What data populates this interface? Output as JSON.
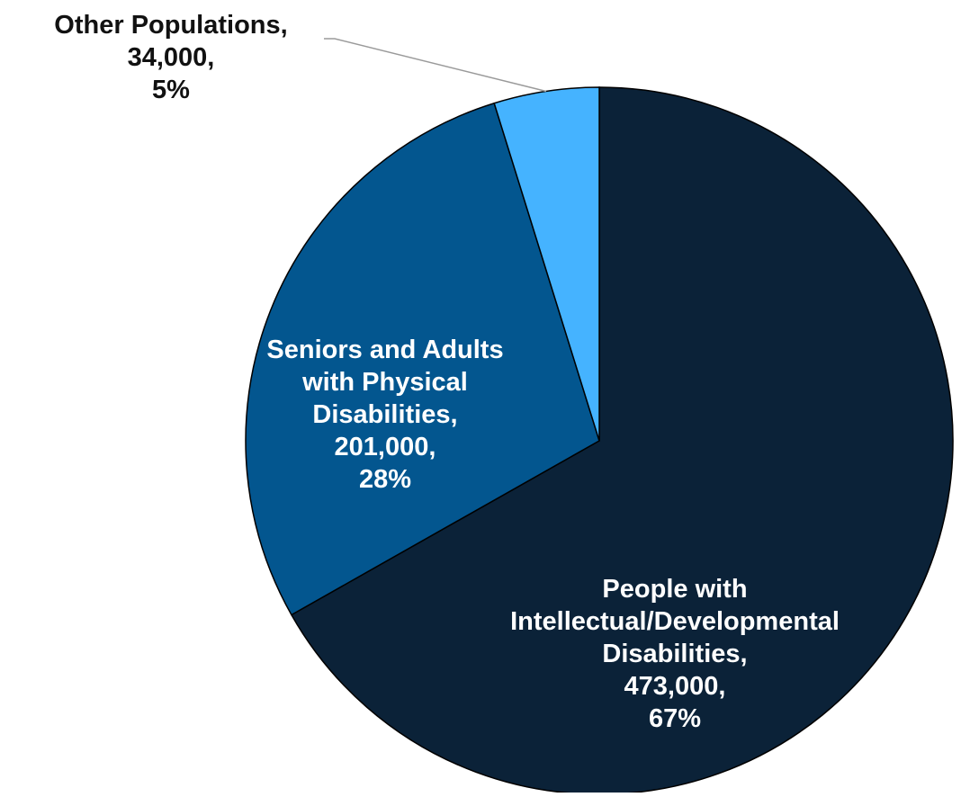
{
  "chart_data": {
    "type": "pie",
    "slices": [
      {
        "category": "People with Intellectual/Developmental Disabilities",
        "value": 473000,
        "percent": 67,
        "color": "#0B2238",
        "label_lines": [
          "People with",
          "Intellectual/Developmental",
          "Disabilities,",
          "473,000,",
          "67%"
        ],
        "label_color": "#FFFFFF"
      },
      {
        "category": "Seniors and Adults with Physical Disabilities",
        "value": 201000,
        "percent": 28,
        "color": "#03568F",
        "label_lines": [
          "Seniors and Adults",
          "with Physical",
          "Disabilities,",
          "201,000,",
          "28%"
        ],
        "label_color": "#FFFFFF"
      },
      {
        "category": "Other Populations",
        "value": 34000,
        "percent": 5,
        "color": "#45B3FF",
        "label_lines": [
          "Other Populations,",
          "34,000,",
          "5%"
        ],
        "label_color": "#111111"
      }
    ],
    "start_angle": "12 o'clock",
    "direction": "clockwise",
    "legend": "none",
    "title": ""
  }
}
